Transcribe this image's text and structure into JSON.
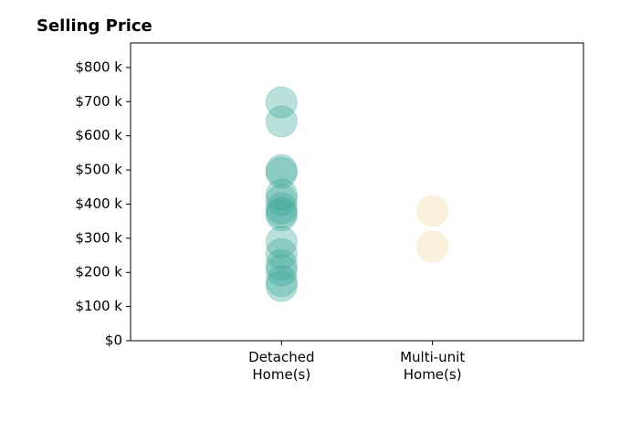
{
  "chart_data": {
    "type": "strip",
    "title": "Selling Price",
    "categories": [
      "Detached\nHome(s)",
      "Multi-unit\nHome(s)"
    ],
    "series": [
      {
        "color": "#3aa597",
        "values": [
          698000,
          642000,
          500000,
          492000,
          428000,
          412000,
          388000,
          375000,
          367000,
          289000,
          254000,
          222000,
          206000,
          174000,
          160000
        ]
      },
      {
        "color": "#f2d69c",
        "values": [
          380000,
          276000
        ]
      }
    ],
    "ylim": [
      0,
      872000
    ],
    "yticks": [
      {
        "value": 0,
        "label": "$0"
      },
      {
        "value": 100000,
        "label": "$100 k"
      },
      {
        "value": 200000,
        "label": "$200 k"
      },
      {
        "value": 300000,
        "label": "$300 k"
      },
      {
        "value": 400000,
        "label": "$400 k"
      },
      {
        "value": 500000,
        "label": "$500 k"
      },
      {
        "value": 600000,
        "label": "$600 k"
      },
      {
        "value": 700000,
        "label": "$700 k"
      },
      {
        "value": 800000,
        "label": "$800 k"
      }
    ]
  }
}
